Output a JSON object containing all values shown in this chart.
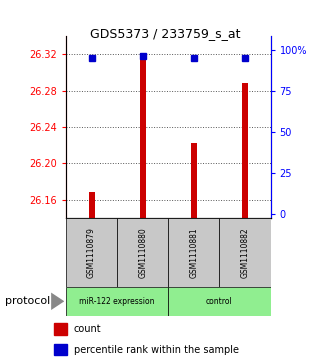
{
  "title": "GDS5373 / 233759_s_at",
  "samples": [
    "GSM1110879",
    "GSM1110880",
    "GSM1110881",
    "GSM1110882"
  ],
  "expression_values": [
    26.168,
    26.322,
    26.222,
    26.288
  ],
  "percentile_values": [
    95,
    96,
    95,
    95
  ],
  "ylim_left": [
    26.14,
    26.34
  ],
  "ylim_right": [
    -2,
    108
  ],
  "yticks_left": [
    26.16,
    26.2,
    26.24,
    26.28,
    26.32
  ],
  "yticks_right": [
    0,
    25,
    50,
    75,
    100
  ],
  "bar_color": "#CC0000",
  "dot_color": "#0000CC",
  "bar_width": 0.12,
  "background_color": "#ffffff",
  "plot_bg_color": "#ffffff",
  "sample_box_color": "#C8C8C8",
  "group1_label": "miR-122 expression",
  "group2_label": "control",
  "group_color": "#90EE90",
  "protocol_label": "protocol",
  "legend_count_label": "count",
  "legend_percentile_label": "percentile rank within the sample"
}
